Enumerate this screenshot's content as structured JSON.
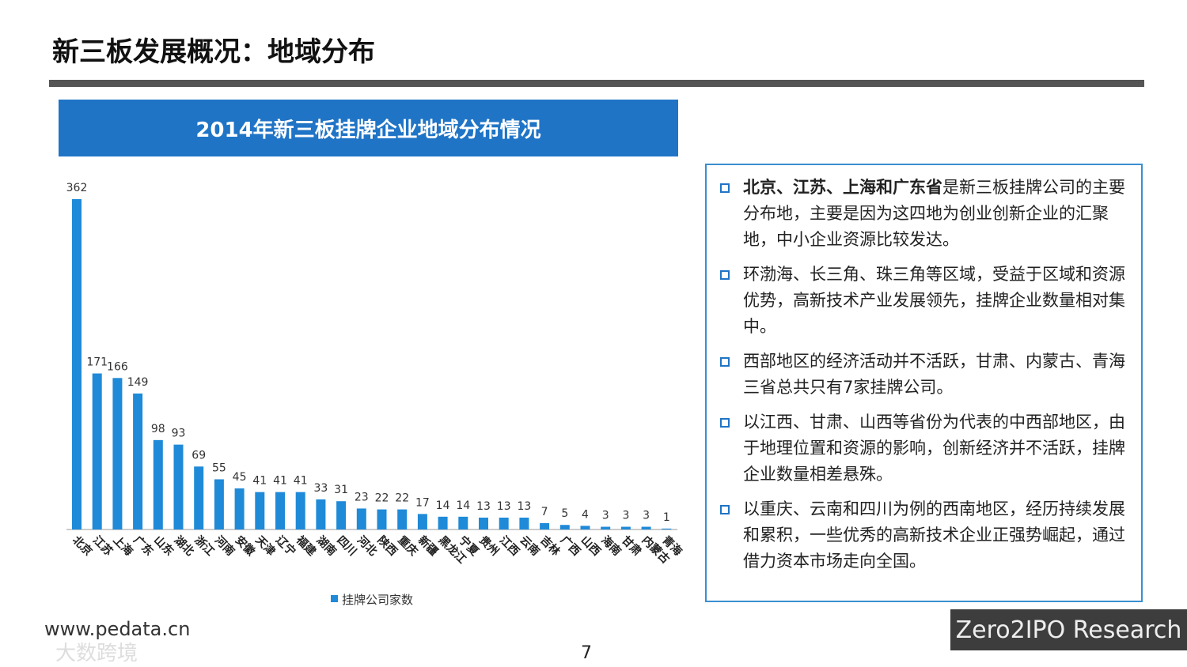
{
  "header": {
    "title": "新三板发展概况：地域分布"
  },
  "chart_data": {
    "type": "bar",
    "title": "2014年新三板挂牌企业地域分布情况",
    "categories": [
      "北京",
      "江苏",
      "上海",
      "广东",
      "山东",
      "湖北",
      "浙江",
      "河南",
      "安徽",
      "天津",
      "辽宁",
      "福建",
      "湖南",
      "四川",
      "河北",
      "陕西",
      "重庆",
      "新疆",
      "黑龙江",
      "宁夏",
      "贵州",
      "江西",
      "云南",
      "吉林",
      "广西",
      "山西",
      "海南",
      "甘肃",
      "内蒙古",
      "青海"
    ],
    "series": [
      {
        "name": "挂牌公司家数",
        "color": "#1f8ad8",
        "values": [
          362,
          171,
          166,
          149,
          98,
          93,
          69,
          55,
          45,
          41,
          41,
          41,
          33,
          31,
          23,
          22,
          22,
          17,
          14,
          14,
          13,
          13,
          13,
          7,
          5,
          4,
          3,
          3,
          3,
          1
        ]
      }
    ],
    "legend": "bottom"
  },
  "notes": {
    "items": [
      {
        "strong": "北京、江苏、上海和广东省",
        "text": "是新三板挂牌公司的主要分布地，主要是因为这四地为创业创新企业的汇聚地，中小企业资源比较发达。"
      },
      {
        "text": "环渤海、长三角、珠三角等区域，受益于区域和资源优势，高新技术产业发展领先，挂牌企业数量相对集中。"
      },
      {
        "text": "西部地区的经济活动并不活跃，甘肃、内蒙古、青海三省总共只有7家挂牌公司。"
      },
      {
        "text": "以江西、甘肃、山西等省份为代表的中西部地区，由于地理位置和资源的影响，创新经济并不活跃，挂牌企业数量相差悬殊。"
      },
      {
        "text": "以重庆、云南和四川为例的西南地区，经历持续发展和累积，一些优秀的高新技术企业正强势崛起，通过借力资本市场走向全国。"
      }
    ]
  },
  "footer": {
    "website": "www.pedata.cn",
    "page": "7",
    "brand": "Zero2IPO Research",
    "watermark": "大数跨境"
  }
}
